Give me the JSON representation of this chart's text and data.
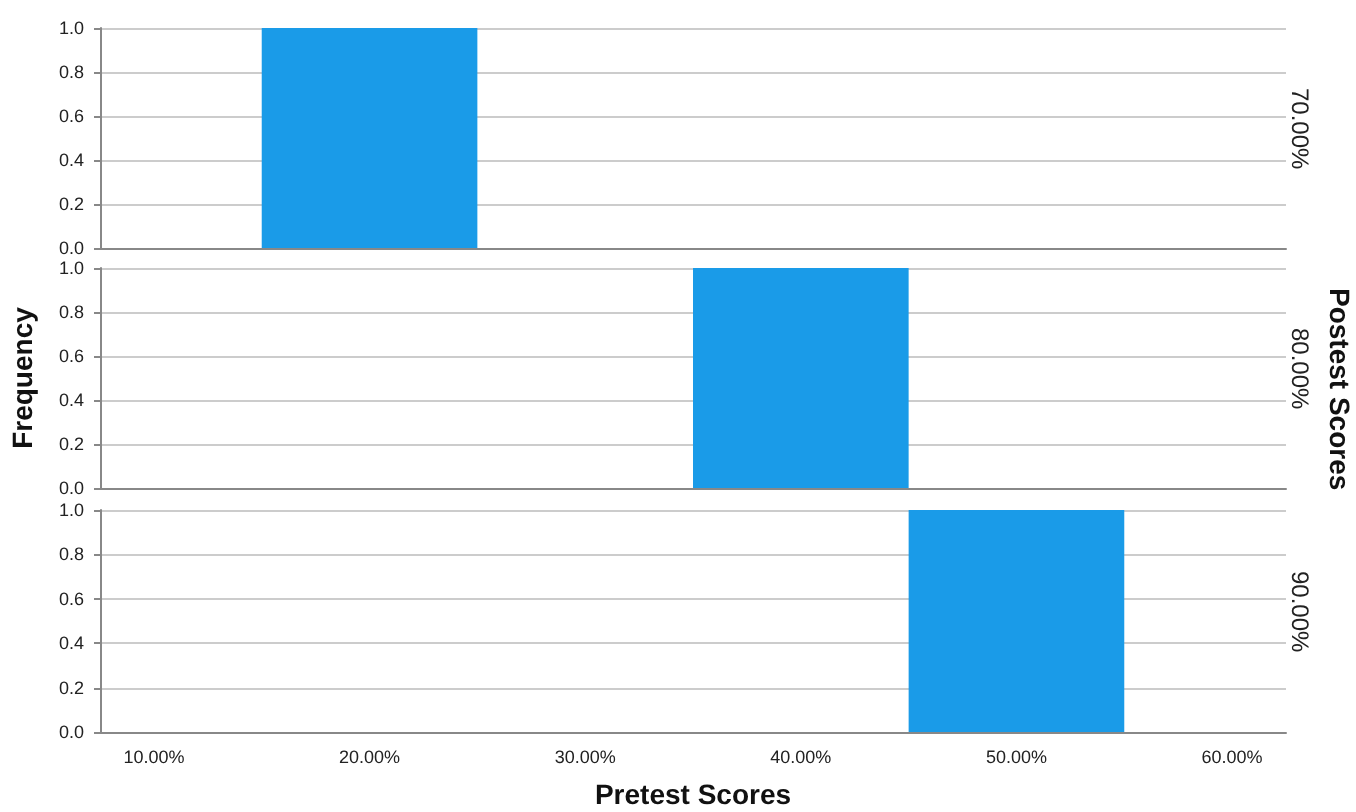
{
  "chart_data": [
    {
      "type": "histogram",
      "title": "70.00%",
      "bins": [
        15,
        25
      ],
      "values": [
        1
      ],
      "color": "#1a9be8",
      "xlim": [
        7.5,
        62.5
      ],
      "ylim": [
        0,
        1
      ],
      "yticks": [
        {
          "value": 0,
          "label": "0.0"
        },
        {
          "value": 0.2,
          "label": "0.2"
        },
        {
          "value": 0.4,
          "label": "0.4"
        },
        {
          "value": 0.6,
          "label": "0.6"
        },
        {
          "value": 0.8,
          "label": "0.8"
        },
        {
          "value": 1,
          "label": "1.0"
        }
      ],
      "grid": "y",
      "tick_labels": "y"
    },
    {
      "type": "histogram",
      "title": "80.00%",
      "ylabel": "Frequency",
      "y2label": "Postest Scores",
      "bins": [
        35,
        45
      ],
      "values": [
        1
      ],
      "color": "#1a9be8",
      "xlim": [
        7.5,
        62.5
      ],
      "ylim": [
        0,
        1
      ],
      "yticks": [
        {
          "value": 0,
          "label": "0.0"
        },
        {
          "value": 0.2,
          "label": "0.2"
        },
        {
          "value": 0.4,
          "label": "0.4"
        },
        {
          "value": 0.6,
          "label": "0.6"
        },
        {
          "value": 0.8,
          "label": "0.8"
        },
        {
          "value": 1,
          "label": "1.0"
        }
      ],
      "grid": "y",
      "tick_labels": "y"
    },
    {
      "type": "histogram",
      "title": "90.00%",
      "xlabel": "Pretest Scores",
      "bins": [
        45,
        55
      ],
      "values": [
        1
      ],
      "color": "#1a9be8",
      "xlim": [
        7.5,
        62.5
      ],
      "xticks": [
        {
          "value": 10,
          "label": "10.00%"
        },
        {
          "value": 20,
          "label": "20.00%"
        },
        {
          "value": 30,
          "label": "30.00%"
        },
        {
          "value": 40,
          "label": "40.00%"
        },
        {
          "value": 50,
          "label": "50.00%"
        },
        {
          "value": 60,
          "label": "60.00%"
        }
      ],
      "ylim": [
        0,
        1
      ],
      "yticks": [
        {
          "value": 0,
          "label": "0.0"
        },
        {
          "value": 0.2,
          "label": "0.2"
        },
        {
          "value": 0.4,
          "label": "0.4"
        },
        {
          "value": 0.6,
          "label": "0.6"
        },
        {
          "value": 0.8,
          "label": "0.8"
        },
        {
          "value": 1,
          "label": "1.0"
        }
      ],
      "grid": "y"
    }
  ]
}
